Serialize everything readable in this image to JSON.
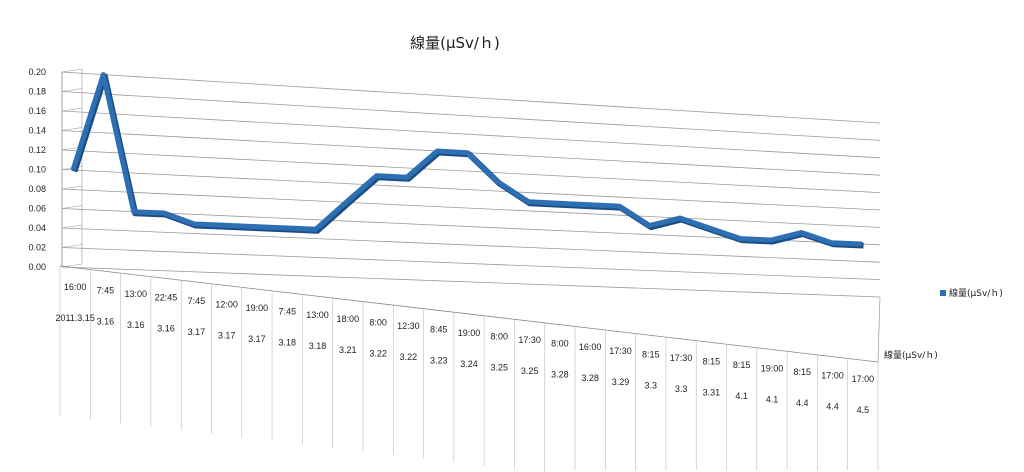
{
  "chart_data": {
    "type": "line",
    "title": "線量(µSv/ｈ)",
    "series": [
      {
        "name": "線量(µSv/ｈ)",
        "values": [
          0.1,
          0.2,
          0.06,
          0.06,
          0.05,
          0.05,
          0.05,
          0.05,
          0.05,
          0.08,
          0.11,
          0.11,
          0.14,
          0.14,
          0.11,
          0.09,
          0.09,
          0.09,
          0.09,
          0.07,
          0.08,
          0.07,
          0.06,
          0.06,
          0.07,
          0.06,
          0.06
        ]
      }
    ],
    "categories": [
      {
        "time": "16:00",
        "date": "2011.3.15"
      },
      {
        "time": "7:45",
        "date": "3.16"
      },
      {
        "time": "13:00",
        "date": "3.16"
      },
      {
        "time": "22:45",
        "date": "3.16"
      },
      {
        "time": "7:45",
        "date": "3.17"
      },
      {
        "time": "12:00",
        "date": "3.17"
      },
      {
        "time": "19:00",
        "date": "3.17"
      },
      {
        "time": "7:45",
        "date": "3.18"
      },
      {
        "time": "13:00",
        "date": "3.18"
      },
      {
        "time": "18:00",
        "date": "3.21"
      },
      {
        "time": "8:00",
        "date": "3.22"
      },
      {
        "time": "12:30",
        "date": "3.22"
      },
      {
        "time": "8:45",
        "date": "3.23"
      },
      {
        "time": "19:00",
        "date": "3.24"
      },
      {
        "time": "8:00",
        "date": "3.25"
      },
      {
        "time": "17:30",
        "date": "3.25"
      },
      {
        "time": "8:00",
        "date": "3.28"
      },
      {
        "time": "16:00",
        "date": "3.28"
      },
      {
        "time": "17:30",
        "date": "3.29"
      },
      {
        "time": "8:15",
        "date": "3.3"
      },
      {
        "time": "17:30",
        "date": "3.3"
      },
      {
        "time": "8:15",
        "date": "3.31"
      },
      {
        "time": "8:15",
        "date": "4.1"
      },
      {
        "time": "19:00",
        "date": "4.1"
      },
      {
        "time": "8:15",
        "date": "4.4"
      },
      {
        "time": "17:00",
        "date": "4.4"
      },
      {
        "time": "17:00",
        "date": "4.5"
      }
    ],
    "yticks": [
      "0.00",
      "0.02",
      "0.04",
      "0.06",
      "0.08",
      "0.10",
      "0.12",
      "0.14",
      "0.16",
      "0.18",
      "0.20"
    ],
    "ylim": [
      0,
      0.2
    ],
    "depth_axis_label": "線量(µSv/ｈ)",
    "legend": {
      "position": "right",
      "label": "線量(µSv/ｈ)"
    },
    "grid": true,
    "colors": {
      "line": "#2e6fb3",
      "line_shadow": "#1c4e86",
      "grid": "#9a9a9a",
      "axis": "#888888"
    }
  }
}
